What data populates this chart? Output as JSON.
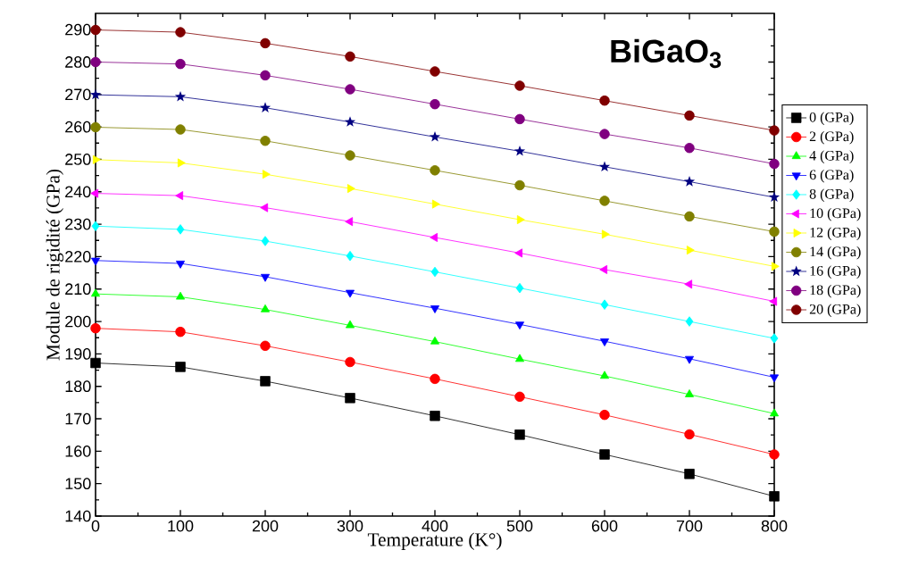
{
  "chart_data": {
    "type": "line",
    "title": "BiGaO$_{3}$",
    "xlabel": "Temperature (K°)",
    "ylabel": "Module de rigidité (GPa)",
    "x": [
      0,
      100,
      200,
      300,
      400,
      500,
      600,
      700,
      800
    ],
    "xlim": [
      0,
      800
    ],
    "xticks": [
      0,
      100,
      200,
      300,
      400,
      500,
      600,
      700,
      800
    ],
    "ylim": [
      140,
      295
    ],
    "yticks": [
      140,
      150,
      160,
      170,
      180,
      190,
      200,
      210,
      220,
      230,
      240,
      250,
      260,
      270,
      280,
      290
    ],
    "legend": "right",
    "grid": false,
    "series": [
      {
        "name": "0 (GPa)",
        "color": "#000000",
        "marker": "square",
        "values": [
          187.2,
          186.0,
          181.6,
          176.4,
          170.9,
          165.1,
          159.0,
          153.0,
          146.1
        ]
      },
      {
        "name": "2 (GPa)",
        "color": "#ff0000",
        "marker": "circle",
        "values": [
          197.9,
          196.8,
          192.5,
          187.5,
          182.3,
          176.8,
          171.2,
          165.2,
          159.0
        ]
      },
      {
        "name": "4 (GPa)",
        "color": "#00ff00",
        "marker": "triangle",
        "values": [
          208.5,
          207.6,
          203.7,
          198.8,
          193.8,
          188.4,
          183.2,
          177.5,
          171.6
        ]
      },
      {
        "name": "6 (GPa)",
        "color": "#0000ff",
        "marker": "triangle-down",
        "values": [
          218.8,
          217.9,
          213.8,
          208.9,
          204.1,
          199.1,
          193.9,
          188.5,
          182.8
        ]
      },
      {
        "name": "8 (GPa)",
        "color": "#00ffff",
        "marker": "diamond",
        "values": [
          229.4,
          228.4,
          224.8,
          220.2,
          215.3,
          210.3,
          205.2,
          200.0,
          194.8
        ]
      },
      {
        "name": "10 (GPa)",
        "color": "#ff00ff",
        "marker": "triangle-left",
        "values": [
          239.5,
          238.8,
          235.1,
          230.8,
          225.9,
          221.1,
          216.0,
          211.5,
          206.2
        ]
      },
      {
        "name": "12 (GPa)",
        "color": "#ffff00",
        "marker": "triangle-right",
        "values": [
          249.9,
          248.9,
          245.4,
          241.0,
          236.2,
          231.4,
          226.9,
          222.0,
          217.0
        ]
      },
      {
        "name": "14 (GPa)",
        "color": "#808000",
        "marker": "circle",
        "values": [
          259.9,
          259.2,
          255.7,
          251.2,
          246.6,
          242.0,
          237.2,
          232.4,
          227.7
        ]
      },
      {
        "name": "16 (GPa)",
        "color": "#000080",
        "marker": "star",
        "values": [
          269.9,
          269.3,
          265.9,
          261.5,
          256.9,
          252.5,
          247.7,
          243.1,
          238.3
        ]
      },
      {
        "name": "18 (GPa)",
        "color": "#800080",
        "marker": "circle",
        "values": [
          280.0,
          279.4,
          275.9,
          271.6,
          267.0,
          262.4,
          257.8,
          253.5,
          248.6
        ]
      },
      {
        "name": "20 (GPa)",
        "color": "#800000",
        "marker": "circle",
        "values": [
          289.9,
          289.2,
          285.8,
          281.7,
          277.1,
          272.7,
          268.1,
          263.5,
          258.9
        ]
      }
    ]
  }
}
